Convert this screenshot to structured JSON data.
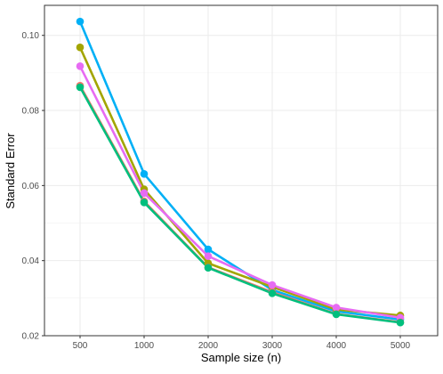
{
  "chart_data": {
    "type": "line",
    "title": "",
    "xlabel": "Sample size (n)",
    "ylabel": "Standard Error",
    "categories": [
      "500",
      "1000",
      "2000",
      "3000",
      "4000",
      "5000"
    ],
    "y_ticks": [
      "0.02",
      "0.04",
      "0.06",
      "0.08",
      "0.10"
    ],
    "ylim": [
      0.02,
      0.108
    ],
    "grid": true,
    "legend": "none",
    "series": [
      {
        "color": "#00B0F6",
        "values": [
          0.1037,
          0.0631,
          0.043,
          0.0322,
          0.0265,
          0.0243
        ]
      },
      {
        "color": "#A3A500",
        "values": [
          0.0968,
          0.059,
          0.0393,
          0.033,
          0.027,
          0.0254
        ]
      },
      {
        "color": "#E76BF3",
        "values": [
          0.0918,
          0.058,
          0.0412,
          0.0335,
          0.0275,
          0.0248
        ]
      },
      {
        "color": "#F8766D",
        "values": [
          0.0866,
          0.0558,
          0.0382,
          0.0316,
          0.0258,
          0.0236
        ]
      },
      {
        "color": "#00BF7D",
        "values": [
          0.0862,
          0.0555,
          0.0381,
          0.0313,
          0.0257,
          0.0235
        ]
      }
    ]
  }
}
